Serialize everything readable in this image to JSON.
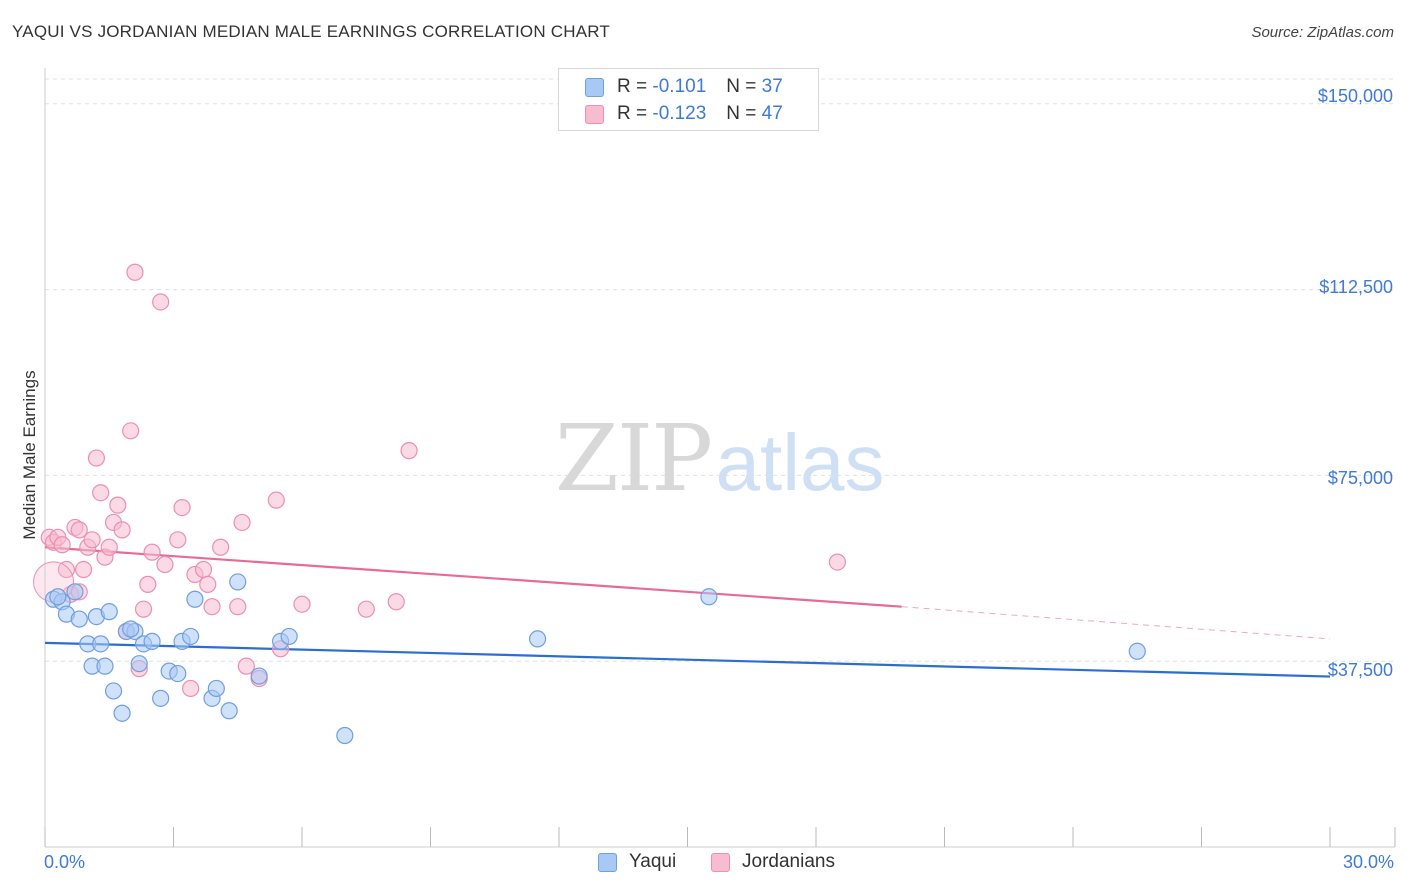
{
  "header": {
    "title": "YAQUI VS JORDANIAN MEDIAN MALE EARNINGS CORRELATION CHART",
    "source": "Source: ZipAtlas.com"
  },
  "watermark": {
    "zip": "ZIP",
    "atlas": "atlas"
  },
  "legend": {
    "rows": [
      {
        "r_label": "R =",
        "r_value": "-0.101",
        "n_label": "N =",
        "n_value": "37"
      },
      {
        "r_label": "R =",
        "r_value": "-0.123",
        "n_label": "N =",
        "n_value": "47"
      }
    ],
    "bottom": [
      "Yaqui",
      "Jordanians"
    ]
  },
  "colors": {
    "yaqui_fill": "#a9c9f5",
    "yaqui_stroke": "#6f9fe0",
    "yaqui_line": "#2a6fcf",
    "jord_fill": "#f8bcd0",
    "jord_stroke": "#ec8fb0",
    "jord_line": "#e86a98",
    "axis_text": "#3f7ad6"
  },
  "chart_data": {
    "type": "scatter",
    "title": "YAQUI VS JORDANIAN MEDIAN MALE EARNINGS CORRELATION CHART",
    "xlabel": "",
    "ylabel": "Median Male Earnings",
    "xlim": [
      0,
      30
    ],
    "ylim": [
      0,
      155000
    ],
    "x_tick_labels": [
      "0.0%",
      "30.0%"
    ],
    "y_ticks": [
      37500,
      75000,
      112500,
      150000
    ],
    "y_tick_labels": [
      "$37,500",
      "$75,000",
      "$112,500",
      "$150,000"
    ],
    "series": [
      {
        "name": "Yaqui",
        "r": -0.101,
        "n": 37,
        "trend": {
          "x": [
            0,
            30
          ],
          "y": [
            41200,
            34400
          ]
        },
        "points": [
          [
            0.2,
            50000
          ],
          [
            0.4,
            49500
          ],
          [
            0.5,
            47000
          ],
          [
            0.7,
            51500
          ],
          [
            0.8,
            46000
          ],
          [
            1.0,
            41000
          ],
          [
            1.1,
            36500
          ],
          [
            1.2,
            46500
          ],
          [
            1.4,
            36500
          ],
          [
            1.5,
            47500
          ],
          [
            1.6,
            31500
          ],
          [
            1.8,
            27000
          ],
          [
            1.9,
            43500
          ],
          [
            2.1,
            43500
          ],
          [
            2.2,
            37000
          ],
          [
            2.3,
            41000
          ],
          [
            2.5,
            41500
          ],
          [
            2.7,
            30000
          ],
          [
            2.9,
            35500
          ],
          [
            3.1,
            35000
          ],
          [
            3.2,
            41500
          ],
          [
            3.4,
            42500
          ],
          [
            3.5,
            50000
          ],
          [
            3.9,
            30000
          ],
          [
            4.0,
            32000
          ],
          [
            4.3,
            27500
          ],
          [
            4.5,
            53500
          ],
          [
            5.0,
            34500
          ],
          [
            5.5,
            41500
          ],
          [
            5.7,
            42500
          ],
          [
            7.0,
            22500
          ],
          [
            11.5,
            42000
          ],
          [
            15.5,
            50500
          ],
          [
            25.5,
            39500
          ],
          [
            0.3,
            50500
          ],
          [
            1.3,
            41000
          ],
          [
            2.0,
            44000
          ]
        ]
      },
      {
        "name": "Jordanians",
        "r": -0.123,
        "n": 47,
        "trend": {
          "x": [
            0,
            20
          ],
          "y": [
            60500,
            48500
          ]
        },
        "trend_dashed": {
          "x": [
            20,
            30
          ],
          "y": [
            48500,
            42000
          ]
        },
        "points": [
          [
            0.1,
            62500
          ],
          [
            0.2,
            61500
          ],
          [
            0.3,
            62500
          ],
          [
            0.4,
            61000
          ],
          [
            0.5,
            56000
          ],
          [
            0.6,
            51000
          ],
          [
            0.7,
            64500
          ],
          [
            0.8,
            64000
          ],
          [
            0.9,
            56000
          ],
          [
            1.0,
            60500
          ],
          [
            1.1,
            62000
          ],
          [
            1.2,
            78500
          ],
          [
            1.3,
            71500
          ],
          [
            1.4,
            58500
          ],
          [
            1.5,
            60500
          ],
          [
            1.6,
            65500
          ],
          [
            1.7,
            69000
          ],
          [
            1.8,
            64000
          ],
          [
            1.9,
            43500
          ],
          [
            2.0,
            84000
          ],
          [
            2.1,
            116000
          ],
          [
            2.2,
            36000
          ],
          [
            2.3,
            48000
          ],
          [
            2.4,
            53000
          ],
          [
            2.5,
            59500
          ],
          [
            2.7,
            110000
          ],
          [
            2.8,
            57000
          ],
          [
            3.1,
            62000
          ],
          [
            3.2,
            68500
          ],
          [
            3.4,
            32000
          ],
          [
            3.5,
            55000
          ],
          [
            3.7,
            56000
          ],
          [
            3.8,
            53000
          ],
          [
            3.9,
            48500
          ],
          [
            4.1,
            60500
          ],
          [
            4.5,
            48500
          ],
          [
            4.6,
            65500
          ],
          [
            4.7,
            36500
          ],
          [
            5.0,
            34000
          ],
          [
            5.4,
            70000
          ],
          [
            5.5,
            40000
          ],
          [
            6.0,
            49000
          ],
          [
            7.5,
            48000
          ],
          [
            8.2,
            49500
          ],
          [
            8.5,
            80000
          ],
          [
            18.5,
            57500
          ],
          [
            0.8,
            51500
          ]
        ]
      }
    ]
  }
}
